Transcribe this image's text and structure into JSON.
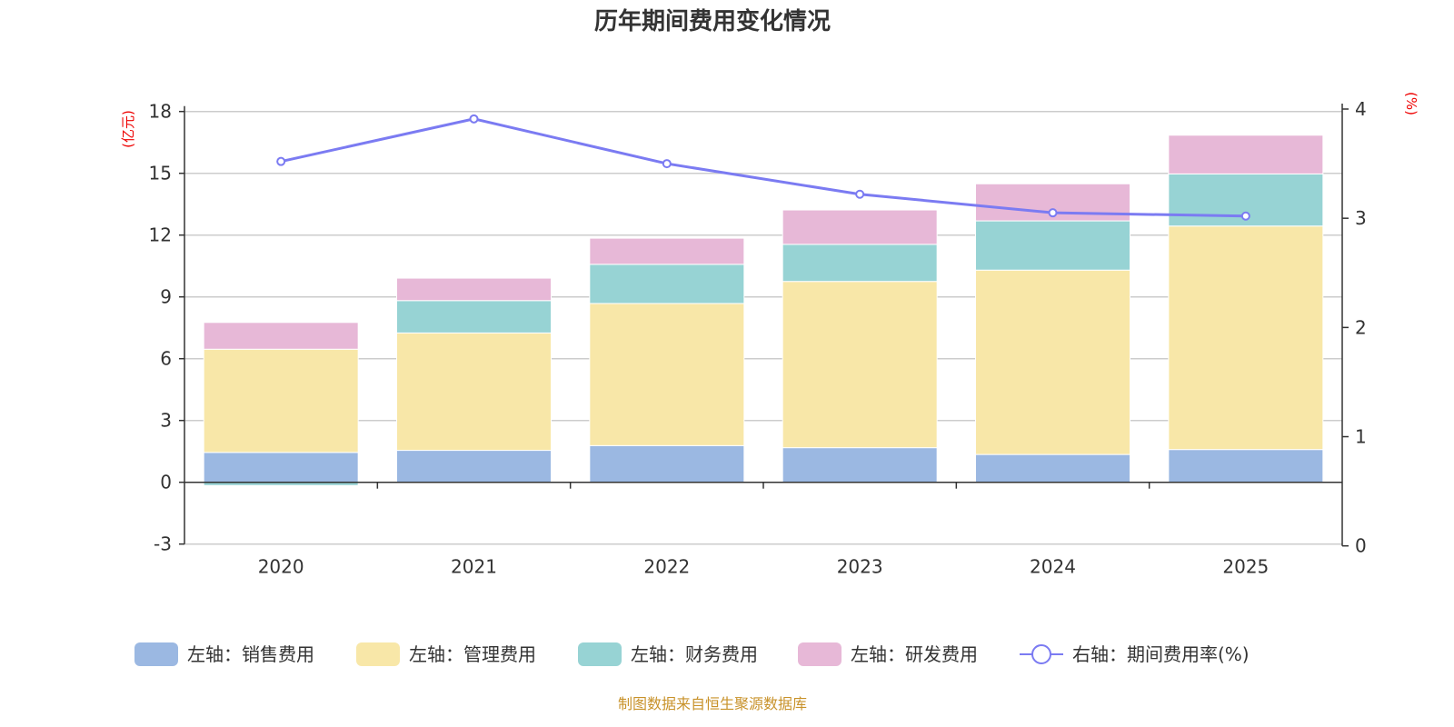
{
  "chart_data": {
    "type": "bar",
    "stacked": true,
    "title": "历年期间费用变化情况",
    "categories": [
      "2020",
      "2021",
      "2022",
      "2023",
      "2024",
      "2025"
    ],
    "y_left": {
      "unit": "(亿元)",
      "ylim": [
        -3,
        18
      ],
      "ticks": [
        18,
        15,
        12,
        9,
        6,
        3,
        0,
        -3
      ]
    },
    "y_right": {
      "unit": "(%)",
      "ylim": [
        0,
        4
      ],
      "ticks": [
        4,
        3,
        2,
        1,
        0
      ]
    },
    "grid": true,
    "legend_position": "bottom",
    "series": [
      {
        "name": "左轴：销售费用",
        "axis": "left",
        "type": "bar",
        "color": "#9bb8e2",
        "values": [
          1.45,
          1.55,
          1.78,
          1.68,
          1.35,
          1.59
        ],
        "labels": [
          "1.45",
          "1.55",
          "1.78",
          "1.68",
          "1.35",
          "1.59"
        ]
      },
      {
        "name": "左轴：管理费用",
        "axis": "left",
        "type": "bar",
        "color": "#f8e7a8",
        "values": [
          5.01,
          5.7,
          6.9,
          8.07,
          8.95,
          10.85
        ]
      },
      {
        "name": "左轴：财务费用",
        "axis": "left",
        "type": "bar",
        "color": "#97d3d4",
        "values": [
          -0.16,
          1.57,
          1.9,
          1.8,
          2.39,
          2.53
        ]
      },
      {
        "name": "左轴：研发费用",
        "axis": "left",
        "type": "bar",
        "color": "#e7b8d7",
        "values": [
          1.3,
          1.09,
          1.27,
          1.67,
          1.8,
          1.88
        ]
      },
      {
        "name": "右轴：期间费用率(%)",
        "axis": "right",
        "type": "line",
        "color": "#7b7bf2",
        "values": [
          3.52,
          3.91,
          3.5,
          3.22,
          3.05,
          3.02
        ]
      }
    ]
  },
  "footer": {
    "source": "制图数据来自恒生聚源数据库"
  }
}
